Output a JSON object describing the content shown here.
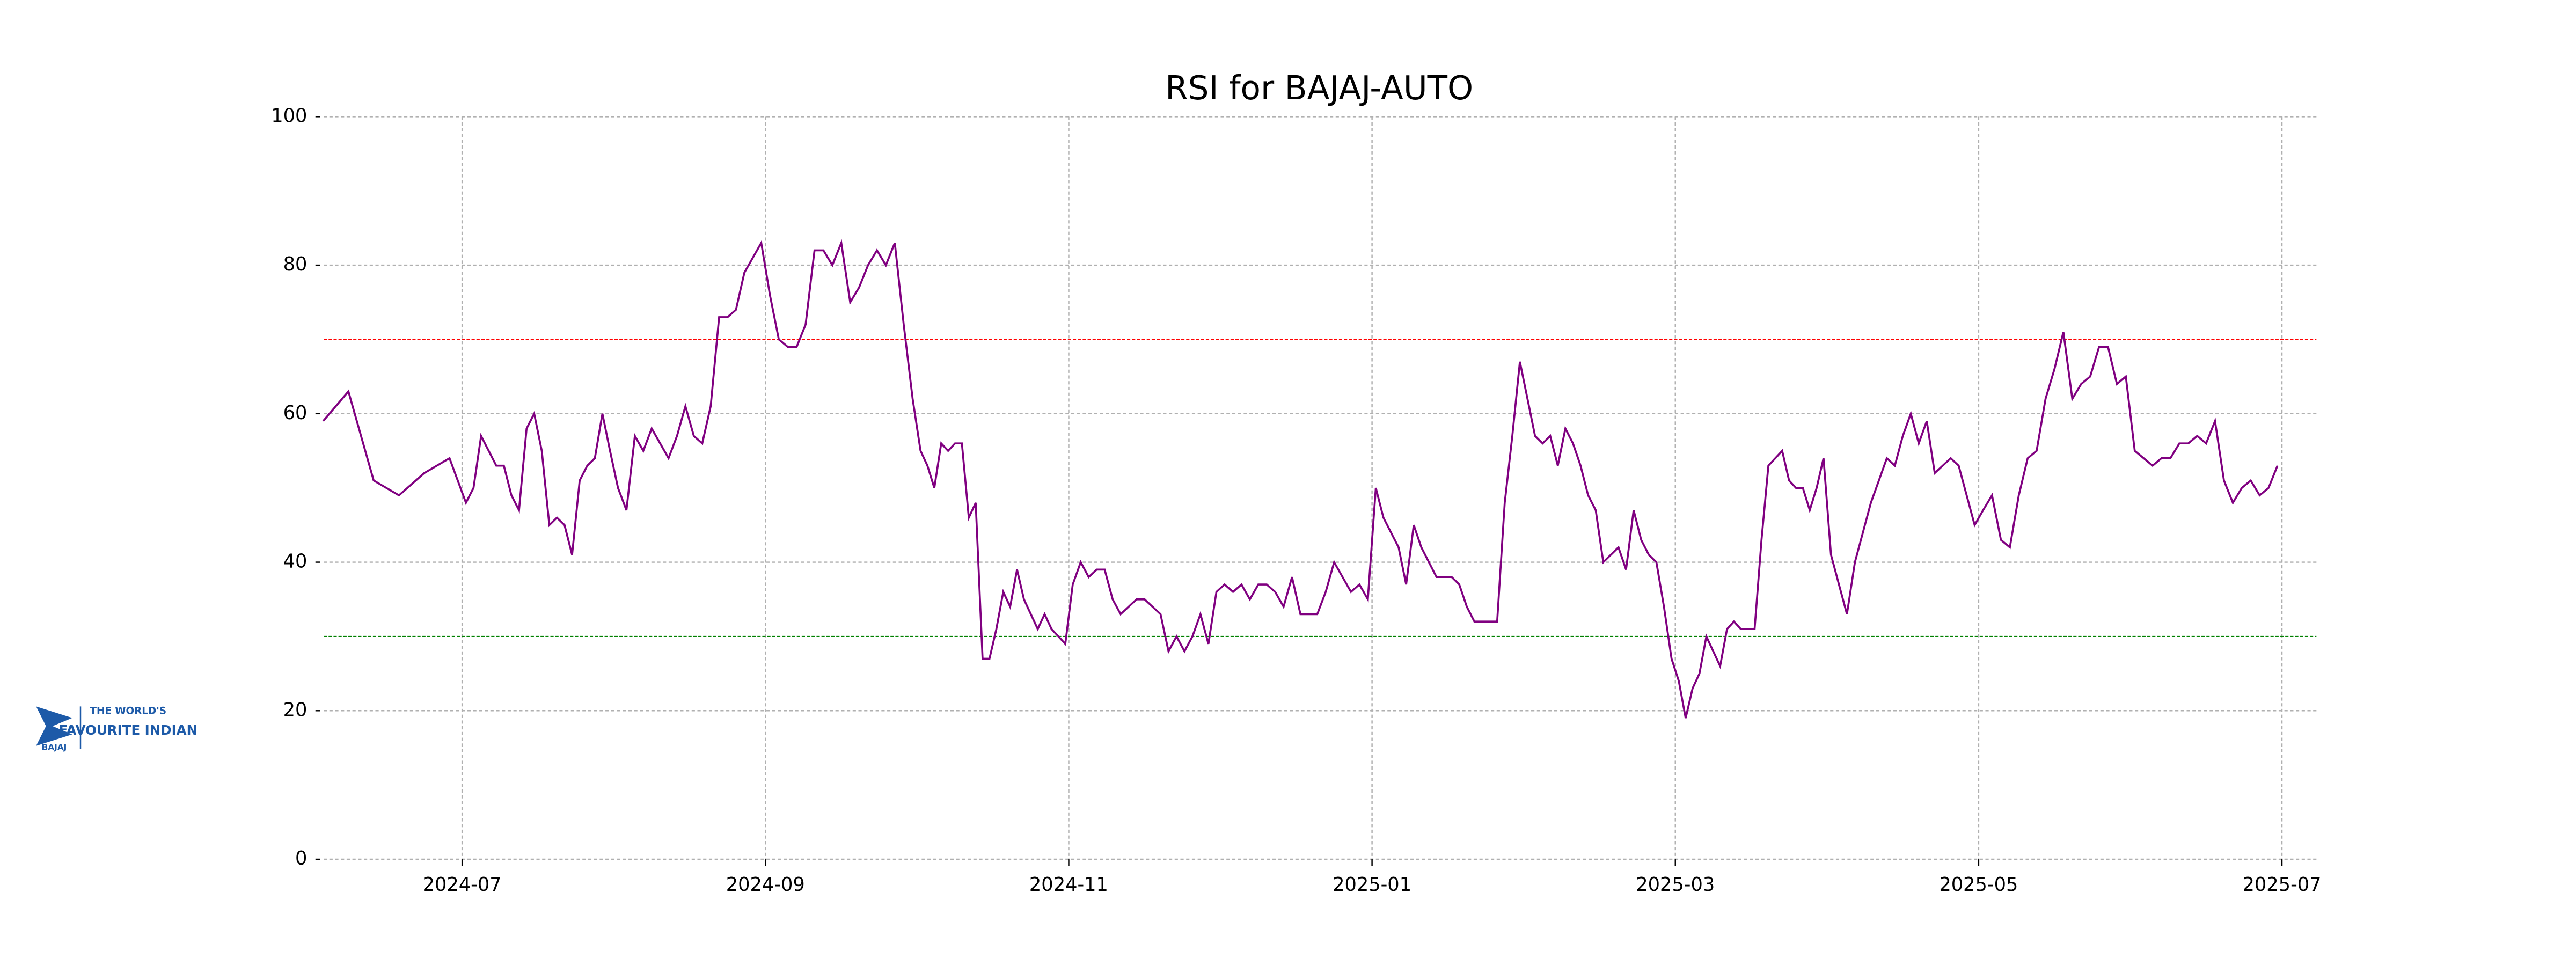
{
  "chart_data": {
    "type": "line",
    "title": "RSI for BAJAJ-AUTO",
    "x": [
      "2024-06",
      "2024-07",
      "2024-08",
      "2024-09",
      "2024-10",
      "2024-11",
      "2024-12",
      "2025-01",
      "2025-02",
      "2025-03",
      "2025-04",
      "2025-05",
      "2025-06"
    ],
    "series": [
      {
        "name": "RSI",
        "color": "#800080",
        "values": [
          [
            59,
            63,
            51,
            49,
            52,
            54
          ],
          [
            48,
            50,
            57,
            55,
            53,
            53,
            49,
            47,
            58,
            60,
            55,
            45,
            46,
            45,
            41,
            51,
            53,
            54,
            60,
            55
          ],
          [
            50,
            47,
            57,
            55,
            58,
            56,
            54,
            57,
            61,
            57,
            56,
            61,
            73,
            73,
            74,
            79,
            81,
            83
          ],
          [
            76,
            70,
            69,
            69,
            72,
            82,
            82,
            80,
            83,
            75,
            77,
            80,
            82,
            80,
            83,
            72,
            62
          ],
          [
            55,
            53,
            50,
            56,
            55,
            56,
            56,
            46,
            48,
            27,
            27,
            31,
            36,
            34,
            39,
            35,
            33,
            31,
            33,
            31,
            30,
            29
          ],
          [
            37,
            40,
            38,
            39,
            39,
            35,
            33,
            34,
            35,
            35,
            34,
            33,
            28,
            30,
            28,
            30,
            33,
            29,
            36
          ],
          [
            37,
            36,
            37,
            35,
            37,
            37,
            36,
            34,
            38,
            33,
            33,
            33,
            36,
            40,
            38,
            36,
            37,
            35
          ],
          [
            50,
            46,
            44,
            42,
            37,
            45,
            42,
            40,
            38,
            38,
            38,
            37,
            34,
            32,
            32,
            32,
            32,
            48,
            57,
            67
          ],
          [
            62,
            57,
            56,
            57,
            53,
            58,
            56,
            53,
            49,
            47,
            40,
            41,
            42,
            39,
            47,
            43,
            41,
            40,
            34,
            27
          ],
          [
            24,
            19,
            23,
            25,
            30,
            28,
            26,
            31,
            32,
            31,
            31,
            31,
            43,
            53,
            54,
            55,
            51,
            50,
            50,
            47,
            50,
            54
          ],
          [
            41,
            37,
            33,
            40,
            44,
            48,
            51,
            54,
            53,
            57,
            60,
            56,
            59,
            52,
            53,
            54,
            53,
            49,
            45
          ],
          [
            47,
            49,
            43,
            42,
            49,
            54,
            55,
            62,
            66,
            71,
            62,
            64,
            65,
            69,
            69,
            64,
            65
          ],
          [
            55,
            54,
            53,
            54,
            54,
            56,
            56,
            57,
            56,
            59,
            51,
            48,
            50,
            51,
            49,
            50,
            53
          ]
        ]
      }
    ],
    "xlim": [
      "2024-06",
      "2025-07"
    ],
    "xticks": [
      "2024-07",
      "2024-09",
      "2024-11",
      "2025-01",
      "2025-03",
      "2025-05",
      "2025-07"
    ],
    "ylim": [
      0,
      100
    ],
    "yticks": [
      0,
      20,
      40,
      60,
      80,
      100
    ],
    "grid": true,
    "hlines": [
      {
        "value": 70,
        "color": "#ff0000"
      },
      {
        "value": 30,
        "color": "#008000"
      }
    ]
  },
  "logo": {
    "brand": "BAJAJ",
    "tagline_top": "THE WORLD'S",
    "tagline": "FAVOURITE INDIAN"
  }
}
